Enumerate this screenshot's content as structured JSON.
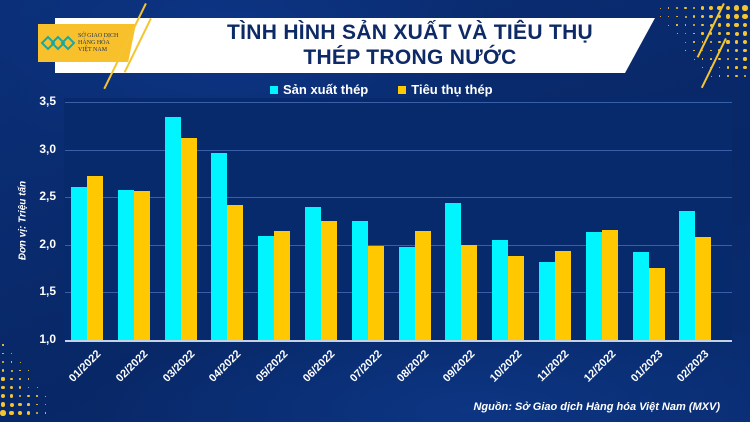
{
  "header": {
    "title_line1": "TÌNH HÌNH SẢN XUẤT VÀ TIÊU THỤ",
    "title_line2": "THÉP TRONG NƯỚC",
    "logo_text": [
      "SỞ GIAO DỊCH",
      "HÀNG HÓA",
      "VIỆT NAM"
    ]
  },
  "legend": [
    {
      "label": "Sản xuất thép",
      "color": "#00f5ff"
    },
    {
      "label": "Tiêu thụ thép",
      "color": "#ffc800"
    }
  ],
  "y_axis": {
    "label": "Đơn vị: Triệu tấn",
    "ticks": [
      "3,5",
      "3,0",
      "2,5",
      "2,0",
      "1,5",
      "1,0"
    ]
  },
  "source": "Nguồn: Sở Giao dịch Hàng hóa Việt Nam (MXV)",
  "colors": {
    "background": "#0a2a6e",
    "production": "#00f5ff",
    "consumption": "#ffc800",
    "title_band": "#ffffff",
    "title_text": "#0e2a66",
    "accent": "#f4c431"
  },
  "chart_data": {
    "type": "bar",
    "title": "TÌNH HÌNH SẢN XUẤT VÀ TIÊU THỤ THÉP TRONG NƯỚC",
    "xlabel": "",
    "ylabel": "Đơn vị: Triệu tấn",
    "ylim": [
      1.0,
      3.5
    ],
    "yticks": [
      1.0,
      1.5,
      2.0,
      2.5,
      3.0,
      3.5
    ],
    "grid": true,
    "legend_position": "top",
    "categories": [
      "01/2022",
      "02/2022",
      "03/2022",
      "04/2022",
      "05/2022",
      "06/2022",
      "07/2022",
      "08/2022",
      "09/2022",
      "10/2022",
      "11/2022",
      "12/2022",
      "01/2023",
      "02/2023"
    ],
    "series": [
      {
        "name": "Sản xuất thép",
        "color": "#00f5ff",
        "values": [
          2.61,
          2.58,
          3.34,
          2.96,
          2.09,
          2.4,
          2.25,
          1.98,
          2.44,
          2.05,
          1.82,
          2.13,
          1.92,
          2.35
        ]
      },
      {
        "name": "Tiêu thụ thép",
        "color": "#ffc800",
        "values": [
          2.72,
          2.57,
          3.12,
          2.42,
          2.14,
          2.25,
          1.99,
          2.15,
          2.0,
          1.88,
          1.94,
          2.16,
          1.76,
          2.08
        ]
      }
    ],
    "source": "Nguồn: Sở Giao dịch Hàng hóa Việt Nam (MXV)"
  }
}
